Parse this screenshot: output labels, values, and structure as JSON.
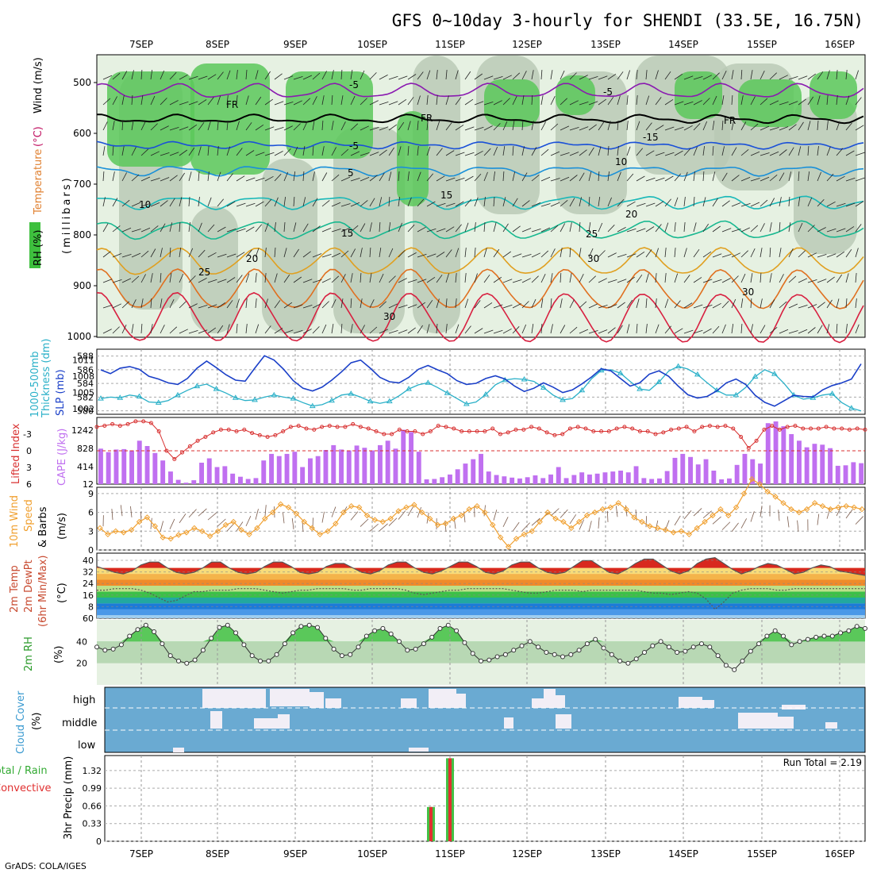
{
  "title": "GFS 0~10day 3-hourly for SHENDI (33.5E, 16.75N)",
  "credit": "GrADS: COLA/IGES",
  "run_total_label": "Run Total = 2.19",
  "date_labels": [
    "7SEP",
    "8SEP",
    "9SEP",
    "10SEP",
    "11SEP",
    "12SEP",
    "13SEP",
    "14SEP",
    "15SEP",
    "16SEP"
  ],
  "panel_labels": {
    "upper": {
      "rh": "RH (%)",
      "temperature": "Temperature",
      "temp_unit": "(°C)",
      "wind": "Wind (m/s)",
      "millibars": "(millibars)"
    },
    "thickness": {
      "line1": "1000-500mb",
      "line2": "Thickness (dm)",
      "slp": "SLP (mb)"
    },
    "lifted": {
      "li": "Lifted Index",
      "cape": "CAPE (J/kg)"
    },
    "wind10": {
      "line1": "10m Wind",
      "line2": "Speed",
      "line3": "& Barbs",
      "unit": "(m/s)"
    },
    "temp2m": {
      "line1": "2m Temp",
      "line2": "2m DewPt",
      "line3": "(6hr Min/Max)",
      "unit": "(°C)"
    },
    "rh2m": {
      "line1": "2m RH",
      "unit": "(%)"
    },
    "cloud": {
      "line1": "Cloud Cover",
      "unit": "(%)",
      "high": "high",
      "middle": "middle",
      "low": "low"
    },
    "precip": {
      "line1": "Total / Rain",
      "line2": "Convective",
      "line3": "3hr Precip (mm)"
    }
  },
  "colors": {
    "thickness": "#2ab0c8",
    "slp": "#1a3fc8",
    "lifted": "#d83030",
    "cape": "#c070f0",
    "wind_speed": "#f0a030",
    "rh_fill": "#5ac85a",
    "cloud_bg": "#6aaad2",
    "precip_total": "#44c044",
    "precip_conv": "#e03030"
  },
  "chart_data": [
    {
      "type": "contour",
      "name": "upper_air",
      "y_ticks": [
        500,
        600,
        700,
        800,
        900,
        1000
      ],
      "ylim": [
        1000,
        450
      ],
      "contour_labels": [
        "-5",
        "-5",
        "FR",
        "FR",
        "FR",
        "-5",
        "-15",
        "5",
        "10",
        "10",
        "15",
        "15",
        "20",
        "20",
        "25",
        "25",
        "30",
        "30",
        "30"
      ],
      "x_start": "6SEP 12Z",
      "x_end": "16SEP 09Z"
    },
    {
      "type": "line",
      "name": "thickness_slp",
      "x": [
        1,
        2,
        3,
        4,
        5,
        6,
        7,
        8,
        9,
        10,
        11,
        12,
        13,
        14,
        15,
        16,
        17,
        18,
        19,
        20,
        21,
        22,
        23,
        24,
        25,
        26,
        27,
        28,
        29,
        30,
        31,
        32,
        33,
        34,
        35,
        36,
        37,
        38,
        39,
        40,
        41,
        42,
        43,
        44,
        45,
        46,
        47,
        48,
        49,
        50,
        51,
        52,
        53,
        54,
        55,
        56,
        57,
        58,
        59,
        60,
        61,
        62,
        63,
        64,
        65,
        66,
        67,
        68,
        69,
        70,
        71,
        72,
        73,
        74,
        75,
        76,
        77,
        78,
        79,
        80
      ],
      "thickness_ticks": [
        580,
        582,
        584,
        586,
        588
      ],
      "slp_ticks": [
        1002,
        1005,
        1008,
        1011
      ],
      "series": [
        {
          "name": "Thickness",
          "axis": "left",
          "values": [
            581.8,
            582.0,
            581.9,
            582.3,
            582.1,
            581.3,
            581.2,
            581.5,
            582.3,
            583.0,
            583.6,
            583.9,
            583.2,
            582.6,
            581.9,
            581.5,
            581.6,
            582.0,
            582.3,
            582.0,
            581.8,
            581.2,
            580.7,
            580.9,
            581.5,
            582.3,
            582.5,
            582.0,
            581.4,
            581.1,
            581.4,
            582.2,
            583.2,
            583.8,
            584.1,
            583.4,
            582.6,
            581.8,
            581.0,
            581.3,
            582.4,
            583.8,
            584.5,
            584.7,
            584.6,
            584.3,
            583.4,
            582.3,
            581.6,
            581.8,
            583.0,
            584.7,
            585.9,
            586.0,
            585.5,
            584.3,
            583.2,
            583.0,
            584.2,
            585.8,
            586.5,
            586.1,
            585.3,
            584.1,
            583.0,
            582.3,
            582.3,
            583.4,
            585.0,
            586.0,
            585.4,
            584.0,
            582.3,
            581.7,
            581.9,
            582.3,
            582.5,
            581.2,
            580.4,
            580.0
          ]
        },
        {
          "name": "SLP",
          "axis": "right",
          "values": [
            1009.2,
            1008.5,
            1009.5,
            1009.8,
            1009.3,
            1008.0,
            1007.5,
            1006.8,
            1006.5,
            1007.6,
            1009.5,
            1010.8,
            1009.6,
            1008.3,
            1007.3,
            1007.1,
            1009.5,
            1011.8,
            1011.0,
            1009.3,
            1007.2,
            1005.8,
            1005.3,
            1006.0,
            1007.3,
            1008.8,
            1010.5,
            1011.0,
            1009.5,
            1007.8,
            1007.0,
            1006.8,
            1007.8,
            1009.3,
            1010.0,
            1009.2,
            1008.5,
            1007.2,
            1006.5,
            1006.7,
            1007.6,
            1008.1,
            1007.5,
            1006.2,
            1005.2,
            1005.8,
            1006.8,
            1006.0,
            1005.0,
            1005.5,
            1006.6,
            1007.9,
            1009.4,
            1009.0,
            1007.6,
            1006.2,
            1006.8,
            1008.4,
            1009.0,
            1008.0,
            1006.2,
            1004.6,
            1004.0,
            1004.3,
            1005.3,
            1006.8,
            1007.5,
            1006.5,
            1004.5,
            1003.2,
            1002.5,
            1003.5,
            1004.5,
            1004.3,
            1004.2,
            1005.5,
            1006.3,
            1006.8,
            1007.5,
            1010.3
          ]
        }
      ]
    },
    {
      "type": "bar",
      "name": "lifted_index_cape",
      "li_ticks": [
        -3,
        0,
        3,
        6
      ],
      "cape_ticks": [
        12,
        414,
        828,
        1242
      ],
      "series": [
        {
          "name": "CAPE",
          "axis": "right",
          "values": [
            820,
            740,
            800,
            810,
            780,
            1000,
            880,
            720,
            550,
            300,
            110,
            45,
            100,
            500,
            600,
            400,
            420,
            250,
            180,
            130,
            150,
            550,
            700,
            650,
            700,
            750,
            400,
            600,
            650,
            790,
            900,
            800,
            780,
            890,
            840,
            780,
            900,
            1000,
            820,
            1250,
            1200,
            750,
            120,
            130,
            170,
            230,
            350,
            480,
            580,
            700,
            300,
            220,
            190,
            160,
            140,
            170,
            210,
            150,
            230,
            400,
            150,
            220,
            280,
            230,
            250,
            280,
            300,
            320,
            280,
            420,
            150,
            130,
            140,
            310,
            610,
            700,
            630,
            460,
            580,
            320,
            120,
            140,
            450,
            700,
            580,
            480,
            1400,
            1440,
            1330,
            1150,
            1000,
            850,
            930,
            910,
            830,
            430,
            440,
            510,
            490
          ]
        },
        {
          "name": "Lifted Index",
          "axis": "left",
          "values": [
            -4.3,
            -4.5,
            -4.8,
            -4.5,
            -4.8,
            -5.3,
            -5.3,
            -5.0,
            -3.5,
            0.0,
            1.5,
            0.3,
            -0.8,
            -1.8,
            -2.5,
            -3.3,
            -3.8,
            -3.8,
            -3.5,
            -3.8,
            -3.2,
            -2.8,
            -2.5,
            -2.8,
            -3.5,
            -4.3,
            -4.5,
            -4.0,
            -3.8,
            -4.3,
            -4.5,
            -4.3,
            -4.3,
            -4.8,
            -4.3,
            -4.0,
            -3.5,
            -3.0,
            -3.0,
            -3.8,
            -3.5,
            -3.5,
            -3.0,
            -3.5,
            -4.5,
            -4.3,
            -4.0,
            -3.5,
            -3.5,
            -3.5,
            -3.5,
            -4.0,
            -3.0,
            -3.3,
            -3.8,
            -3.8,
            -4.3,
            -4.0,
            -3.3,
            -2.8,
            -3.0,
            -4.0,
            -4.3,
            -4.0,
            -3.5,
            -3.5,
            -3.5,
            -4.0,
            -4.3,
            -4.0,
            -3.5,
            -3.5,
            -3.0,
            -3.3,
            -3.8,
            -4.0,
            -4.3,
            -3.5,
            -4.3,
            -4.5,
            -4.3,
            -4.5,
            -4.0,
            -2.5,
            -0.5,
            -1.8,
            -3.8,
            -4.5,
            -3.8,
            -4.3,
            -4.5,
            -4.0,
            -4.0,
            -4.0,
            -4.3,
            -4.0,
            -4.0,
            -3.8,
            -4.0,
            -3.8
          ]
        }
      ]
    },
    {
      "type": "line",
      "name": "wind10m",
      "y_ticks": [
        0,
        3,
        6,
        9
      ],
      "ylim": [
        0,
        10
      ],
      "series": [
        {
          "name": "Speed",
          "values": [
            3.5,
            2.5,
            3.0,
            2.8,
            3.2,
            4.5,
            5.2,
            3.8,
            2.0,
            1.8,
            2.4,
            2.8,
            3.5,
            3.0,
            2.2,
            3.0,
            4.0,
            4.5,
            3.2,
            2.5,
            3.5,
            5.0,
            6.0,
            7.3,
            6.8,
            5.8,
            4.5,
            3.5,
            2.5,
            3.0,
            4.2,
            6.0,
            7.0,
            6.8,
            5.5,
            4.8,
            4.5,
            5.0,
            6.2,
            6.8,
            7.2,
            6.0,
            5.0,
            4.0,
            4.2,
            5.0,
            5.5,
            6.5,
            7.0,
            6.0,
            4.0,
            2.0,
            0.5,
            1.8,
            2.5,
            3.0,
            4.5,
            6.0,
            5.0,
            4.5,
            3.5,
            4.5,
            5.5,
            6.0,
            6.5,
            6.8,
            7.5,
            6.5,
            5.2,
            4.5,
            3.8,
            3.5,
            3.2,
            2.8,
            3.0,
            2.5,
            3.5,
            4.5,
            5.5,
            6.5,
            5.5,
            6.8,
            9.0,
            11.3,
            10.5,
            9.3,
            8.5,
            7.5,
            6.5,
            6.0,
            6.5,
            7.5,
            7.0,
            6.5,
            6.8,
            7.0,
            6.8,
            6.5
          ]
        }
      ]
    },
    {
      "type": "area",
      "name": "temp2m_dewpt",
      "y_ticks": [
        40,
        32,
        24,
        16,
        8,
        60
      ],
      "series": [
        {
          "name": "2m Temp",
          "values": [
            35,
            33,
            31,
            30,
            32,
            36,
            38,
            38,
            34,
            31,
            30,
            31,
            34,
            38,
            38,
            34,
            31,
            30,
            31,
            35,
            38,
            38,
            35,
            31,
            30,
            31,
            35,
            37,
            37,
            34,
            31,
            30,
            32,
            36,
            38,
            38,
            34,
            31,
            30,
            32,
            35,
            38,
            38,
            35,
            31,
            30,
            32,
            36,
            38,
            38,
            34,
            31,
            30,
            31,
            35,
            39,
            39,
            35,
            31,
            30,
            33,
            37,
            40,
            40,
            36,
            32,
            30,
            32,
            37,
            40,
            41,
            37,
            33,
            30,
            32,
            35,
            37,
            36,
            33,
            30,
            31,
            34,
            36,
            35,
            32,
            31,
            30,
            29
          ]
        },
        {
          "name": "2m DewPt",
          "values": [
            19,
            19,
            20,
            20,
            20,
            19,
            17,
            14,
            11,
            12,
            15,
            18,
            18,
            19,
            19,
            19,
            20,
            20,
            20,
            19,
            18,
            17,
            18,
            19,
            19,
            20,
            20,
            20,
            20,
            19,
            19,
            20,
            20,
            20,
            20,
            19,
            17,
            16,
            17,
            18,
            19,
            19,
            20,
            20,
            20,
            20,
            20,
            19,
            18,
            17,
            17,
            18,
            19,
            19,
            19,
            18,
            19,
            19,
            19,
            19,
            19,
            19,
            18,
            17,
            17,
            16,
            17,
            18,
            17,
            13,
            6,
            11,
            17,
            19,
            20,
            20,
            20,
            19,
            19,
            20,
            20,
            20,
            20,
            20,
            20,
            20,
            20,
            20
          ]
        }
      ]
    },
    {
      "type": "area",
      "name": "rh2m",
      "y_ticks": [
        20,
        40
      ],
      "ylim": [
        0,
        60
      ],
      "series": [
        {
          "name": "2m RH",
          "values": [
            35,
            32,
            33,
            37,
            45,
            51,
            55,
            49,
            38,
            27,
            22,
            20,
            23,
            32,
            43,
            53,
            55,
            48,
            37,
            27,
            22,
            22,
            28,
            38,
            48,
            54,
            55,
            53,
            43,
            33,
            27,
            28,
            35,
            45,
            50,
            52,
            47,
            40,
            32,
            33,
            38,
            44,
            52,
            55,
            50,
            39,
            29,
            22,
            23,
            26,
            28,
            32,
            36,
            40,
            35,
            30,
            28,
            26,
            28,
            32,
            38,
            42,
            34,
            28,
            22,
            20,
            24,
            30,
            36,
            40,
            35,
            30,
            31,
            35,
            38,
            35,
            27,
            18,
            14,
            22,
            31,
            38,
            45,
            50,
            45,
            37,
            40,
            42,
            44,
            45,
            45,
            48,
            50,
            54,
            52
          ]
        }
      ]
    },
    {
      "type": "table",
      "name": "cloud_cover",
      "rows": [
        "high",
        "middle",
        "low"
      ]
    },
    {
      "type": "bar",
      "name": "precip3hr",
      "y_ticks": [
        0,
        0.33,
        0.66,
        0.99,
        1.32
      ],
      "ylim": [
        0,
        1.6
      ],
      "series": [
        {
          "name": "Total",
          "x": [
            "10SEP 21Z",
            "11SEP 00Z"
          ],
          "values": [
            0.64,
            1.55
          ]
        },
        {
          "name": "Convective",
          "x": [
            "10SEP 21Z",
            "11SEP 00Z"
          ],
          "values": [
            0.64,
            1.55
          ]
        }
      ]
    }
  ]
}
